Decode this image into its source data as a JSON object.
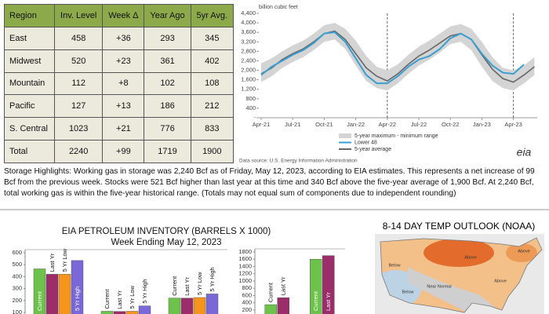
{
  "table": {
    "header": [
      "Region",
      "Inv. Level",
      "Week Δ",
      "Year Ago",
      "5yr Avg."
    ],
    "rows": [
      [
        "East",
        458,
        "+36",
        293,
        345
      ],
      [
        "Midwest",
        520,
        "+23",
        361,
        402
      ],
      [
        "Mountain",
        112,
        "+8",
        102,
        108
      ],
      [
        "Pacific",
        127,
        "+13",
        186,
        212
      ],
      [
        "S. Central",
        1023,
        "+21",
        776,
        833
      ],
      [
        "Total",
        2240,
        "+99",
        1719,
        1900
      ]
    ]
  },
  "highlights": "Storage Highlights: Working gas in storage was 2,240 Bcf as of Friday, May 12, 2023, according to EIA estimates. This represents a net increase of 99 Bcf from the previous week. Stocks were 521 Bcf higher than last year at this time and 340 Bcf above the five-year average of 1,900 Bcf. At 2,240 Bcf, total working gas is within the five-year historical range. (Totals may not equal sum of components due to independent rounding)",
  "chart_data": [
    {
      "type": "line",
      "y_label": "billion cubic feet",
      "x": [
        "Apr-21",
        "May-21",
        "Jun-21",
        "Jul-21",
        "Aug-21",
        "Sep-21",
        "Oct-21",
        "Nov-21",
        "Dec-21",
        "Jan-22",
        "Feb-22",
        "Mar-22",
        "Apr-22",
        "May-22",
        "Jun-22",
        "Jul-22",
        "Aug-22",
        "Sep-22",
        "Oct-22",
        "Nov-22",
        "Dec-22",
        "Jan-23",
        "Feb-23",
        "Mar-23",
        "Apr-23",
        "May-23",
        "Jun-23"
      ],
      "xticks": [
        "Apr-21",
        "Jul-21",
        "Oct-21",
        "Jan-22",
        "Apr-22",
        "Jul-22",
        "Oct-22",
        "Jan-23",
        "Apr-23"
      ],
      "vlines": [
        "Apr-22",
        "Apr-23"
      ],
      "ylim": [
        0,
        4400
      ],
      "yticks": [
        {
          "value": 0,
          "label": "-"
        },
        {
          "value": 400,
          "label": "400"
        },
        {
          "value": 800,
          "label": "800"
        },
        {
          "value": 1200,
          "label": "1,200"
        },
        {
          "value": 1600,
          "label": "1,600"
        },
        {
          "value": 2000,
          "label": "2,000"
        },
        {
          "value": 2400,
          "label": "2,400"
        },
        {
          "value": 2800,
          "label": "2,800"
        },
        {
          "value": 3200,
          "label": "3,200"
        },
        {
          "value": 3600,
          "label": "3,600"
        },
        {
          "value": 4000,
          "label": "4,000"
        },
        {
          "value": 4400,
          "label": "4,400"
        }
      ],
      "series": [
        {
          "name": "5-year maximum - minimum range",
          "color": "#d4d4d4",
          "high": [
            2300,
            2500,
            2800,
            3050,
            3250,
            3550,
            3900,
            4000,
            3750,
            3250,
            2600,
            2150,
            2000,
            2250,
            2650,
            3000,
            3250,
            3550,
            3850,
            3950,
            3750,
            3200,
            2550,
            2100,
            2000,
            2200,
            2550
          ],
          "low": [
            1500,
            1750,
            2100,
            2350,
            2550,
            2850,
            3200,
            3300,
            2900,
            2200,
            1550,
            1250,
            1150,
            1450,
            1850,
            2200,
            2450,
            2750,
            3100,
            3200,
            2850,
            2150,
            1550,
            1250,
            1150,
            1450,
            1800
          ]
        },
        {
          "name": "Lower 48",
          "color": "#3a9fd0",
          "values": [
            1800,
            2150,
            2400,
            2650,
            2850,
            3150,
            3550,
            3600,
            3200,
            2500,
            1800,
            1450,
            1450,
            1750,
            2150,
            2450,
            2600,
            2900,
            3350,
            3550,
            3300,
            2700,
            2200,
            1900,
            1850,
            2240,
            null
          ]
        },
        {
          "name": "5-year average",
          "color": "#666666",
          "values": [
            1850,
            2100,
            2450,
            2700,
            2900,
            3200,
            3550,
            3650,
            3300,
            2700,
            2100,
            1750,
            1550,
            1850,
            2250,
            2600,
            2850,
            3150,
            3450,
            3550,
            3300,
            2650,
            2050,
            1650,
            1500,
            1800,
            2150
          ]
        }
      ],
      "source": "Data source: U.S. Energy Information Administration",
      "logo": "eia"
    },
    {
      "type": "bar",
      "title": "EIA PETROLEUM INVENTORY (BARRELS X 1000)",
      "subtitle": "Week Ending May 12, 2023",
      "categories": [
        null,
        null,
        null
      ],
      "ylim": [
        0,
        600
      ],
      "yticks": [
        100,
        200,
        300,
        400,
        500,
        600
      ],
      "series": [
        {
          "name": "Current",
          "color": "#6cc24a",
          "values": [
            465,
            110,
            220
          ]
        },
        {
          "name": "Last Yr",
          "color": "#9b2d6b",
          "values": [
            420,
            108,
            220
          ]
        },
        {
          "name": "5 Yr Low",
          "color": "#f7941d",
          "values": [
            420,
            110,
            225
          ]
        },
        {
          "name": "5 Yr High",
          "color": "#7b68d8",
          "values": [
            535,
            155,
            255
          ]
        }
      ]
    },
    {
      "type": "bar",
      "categories": [
        null,
        null
      ],
      "ylim": [
        0,
        1800
      ],
      "yticks": [
        200,
        400,
        600,
        800,
        1000,
        1200,
        1400,
        1600,
        1800
      ],
      "series": [
        {
          "name": "Current",
          "color": "#6cc24a",
          "values": [
            350,
            1600
          ]
        },
        {
          "name": "Last Yr",
          "color": "#9b2d6b",
          "values": [
            540,
            1700
          ]
        }
      ]
    }
  ],
  "outlook": {
    "title": "8-14 DAY TEMP OUTLOOK (NOAA)",
    "labels": [
      "Above",
      "Above",
      "Below",
      "Near Normal",
      "Below",
      "Above"
    ]
  }
}
